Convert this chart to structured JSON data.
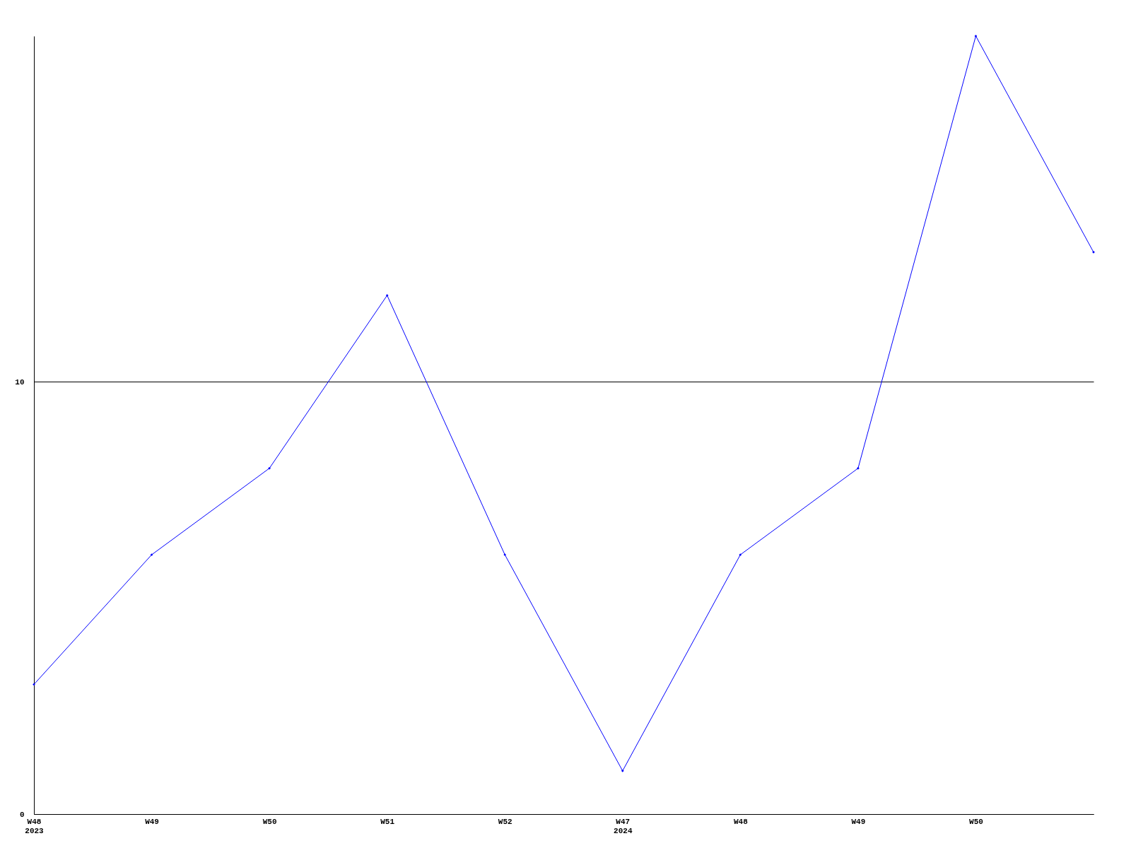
{
  "chart_data": {
    "type": "line",
    "categories": [
      "W48\n2023",
      "W49",
      "W50",
      "W51",
      "W52",
      "W47\n2024",
      "W48",
      "W49",
      "W50",
      null
    ],
    "series": [
      {
        "color": "#0000ff",
        "values": [
          3,
          6,
          8,
          12,
          6,
          1,
          6,
          8,
          18,
          13
        ]
      }
    ],
    "ylim": [
      0,
      18
    ],
    "yticks": [
      0,
      10
    ],
    "grid": "y",
    "marker": "diamond",
    "line_style": "solid",
    "legend": false
  }
}
